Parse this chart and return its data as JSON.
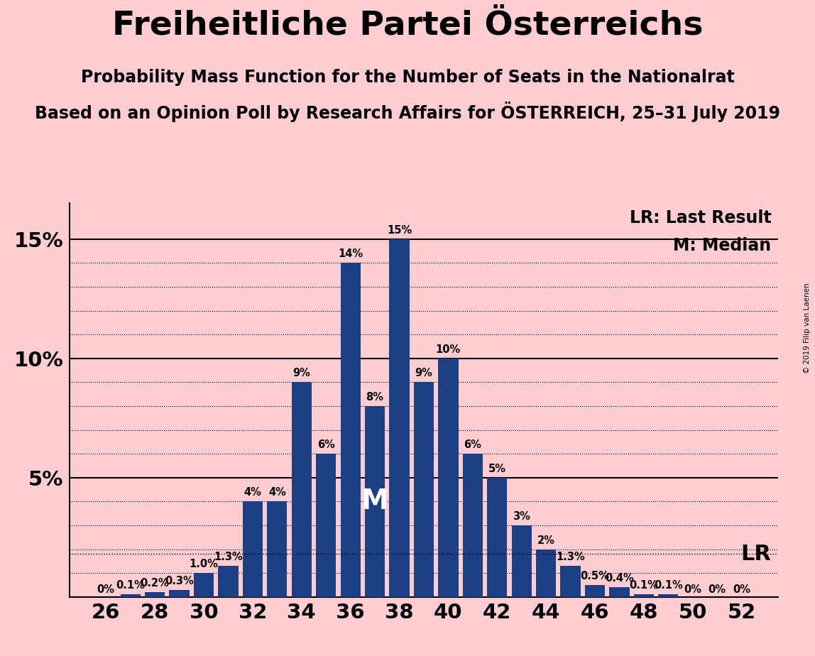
{
  "title": "Freiheitliche Partei Österreichs",
  "subtitle1": "Probability Mass Function for the Number of Seats in the Nationalrat",
  "subtitle2": "Based on an Opinion Poll by Research Affairs for ÖSTERREICH, 25–31 July 2019",
  "copyright": "© 2019 Filip van Laenen",
  "background_color": "#FFCDD2",
  "bar_color": "#1B3F82",
  "seats": [
    26,
    27,
    28,
    29,
    30,
    31,
    32,
    33,
    34,
    35,
    36,
    37,
    38,
    39,
    40,
    41,
    42,
    43,
    44,
    45,
    46,
    47,
    48,
    49,
    50,
    51,
    52
  ],
  "probabilities": [
    0.0,
    0.1,
    0.2,
    0.3,
    1.0,
    1.3,
    4.0,
    4.0,
    9.0,
    6.0,
    14.0,
    8.0,
    15.0,
    9.0,
    10.0,
    6.0,
    5.0,
    3.0,
    2.0,
    1.3,
    0.5,
    0.4,
    0.1,
    0.1,
    0.0,
    0.0,
    0.0
  ],
  "bar_labels": [
    "0%",
    "0.1%",
    "0.2%",
    "0.3%",
    "1.0%",
    "1.3%",
    "4%",
    "4%",
    "9%",
    "6%",
    "14%",
    "8%",
    "15%",
    "9%",
    "10%",
    "6%",
    "5%",
    "3%",
    "2%",
    "1.3%",
    "0.5%",
    "0.4%",
    "0.1%",
    "0.1%",
    "0%",
    "0%",
    "0%"
  ],
  "median_seat": 37,
  "lr_value": 1.8,
  "ylim_max": 16.5,
  "lr_label": "LR: Last Result",
  "m_label": "M: Median",
  "lr_annotation": "LR",
  "m_annotation": "M",
  "legend_fontsize": 17,
  "title_fontsize": 34,
  "subtitle_fontsize": 17,
  "bar_label_fontsize": 10.5,
  "tick_fontsize": 21,
  "yticks": [
    5,
    10,
    15
  ],
  "ytick_labels": [
    "5%",
    "10%",
    "15%"
  ],
  "dotted_yticks": [
    1,
    2,
    3,
    4,
    6,
    7,
    8,
    9,
    11,
    12,
    13,
    14
  ]
}
